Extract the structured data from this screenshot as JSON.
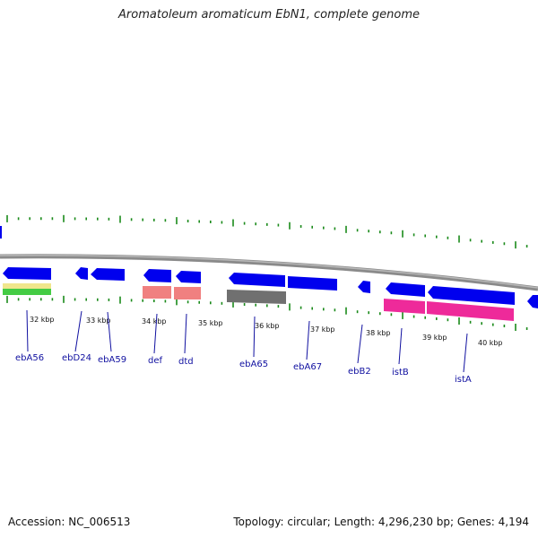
{
  "title": "Aromatoleum aromaticum EbN1, complete genome",
  "footer": {
    "accession": "Accession: NC_006513",
    "summary": "Topology: circular; Length: 4,296,230 bp; Genes: 4,194"
  },
  "colors": {
    "gene_blue": "#0000ee",
    "ruler_green": "#1a8a1a",
    "backbone_gray": "#8a8a8a",
    "label_blue": "#1010a0",
    "feature_yellow": "#f0e68c",
    "feature_green": "#44cc44",
    "feature_salmon": "#f08080",
    "feature_gray": "#707070",
    "feature_pink": "#ee2a9a"
  },
  "kbp_labels": [
    "32 kbp",
    "33 kbp",
    "34 kbp",
    "35 kbp",
    "36 kbp",
    "37 kbp",
    "38 kbp",
    "39 kbp",
    "40 kbp"
  ],
  "genes": [
    {
      "name": "ebA56"
    },
    {
      "name": "ebD24"
    },
    {
      "name": "ebA59"
    },
    {
      "name": "def"
    },
    {
      "name": "dtd"
    },
    {
      "name": "ebA65"
    },
    {
      "name": "ebA67"
    },
    {
      "name": "ebB2"
    },
    {
      "name": "istB"
    },
    {
      "name": "istA"
    }
  ]
}
